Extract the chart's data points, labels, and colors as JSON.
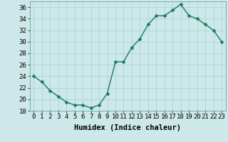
{
  "x": [
    0,
    1,
    2,
    3,
    4,
    5,
    6,
    7,
    8,
    9,
    10,
    11,
    12,
    13,
    14,
    15,
    16,
    17,
    18,
    19,
    20,
    21,
    22,
    23
  ],
  "y": [
    24,
    23,
    21.5,
    20.5,
    19.5,
    19,
    19,
    18.5,
    19,
    21,
    26.5,
    26.5,
    29,
    30.5,
    33,
    34.5,
    34.5,
    35.5,
    36.5,
    34.5,
    34,
    33,
    32,
    30
  ],
  "line_color": "#1a7a5e",
  "marker_color": "#1a7a5e",
  "bg_color": "#cce8e8",
  "grid_color": "#aad0d0",
  "xlabel": "Humidex (Indice chaleur)",
  "ylim": [
    18,
    37
  ],
  "xlim": [
    -0.5,
    23.5
  ],
  "yticks": [
    18,
    20,
    22,
    24,
    26,
    28,
    30,
    32,
    34,
    36
  ],
  "xticks": [
    0,
    1,
    2,
    3,
    4,
    5,
    6,
    7,
    8,
    9,
    10,
    11,
    12,
    13,
    14,
    15,
    16,
    17,
    18,
    19,
    20,
    21,
    22,
    23
  ],
  "tick_fontsize": 6.5,
  "xlabel_fontsize": 7.5,
  "line_width": 1.0,
  "marker_size": 2.5
}
